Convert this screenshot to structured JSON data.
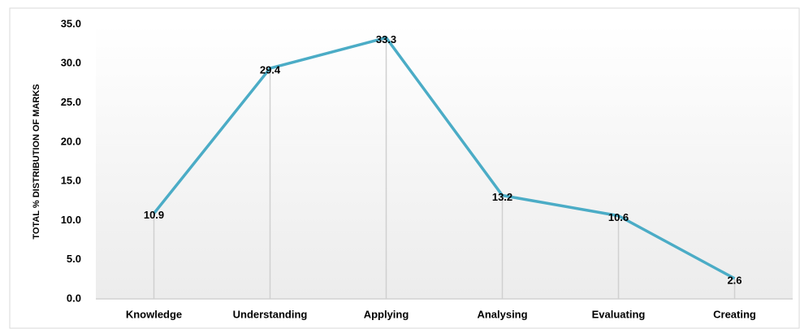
{
  "chart_data": {
    "type": "line",
    "y_label": "TOTAL % DISTRIBUTION OF MARKS",
    "categories": [
      "Knowledge",
      "Understanding",
      "Applying",
      "Analysing",
      "Evaluating",
      "Creating"
    ],
    "values": [
      10.9,
      29.4,
      33.3,
      13.2,
      10.6,
      2.6
    ],
    "color": "#4bacc6",
    "ylim": [
      0,
      35
    ],
    "yticks": [
      {
        "value": 0,
        "label": "0.0"
      },
      {
        "value": 5,
        "label": "5.0"
      },
      {
        "value": 10,
        "label": "10.0"
      },
      {
        "value": 15,
        "label": "15.0"
      },
      {
        "value": 20,
        "label": "20.0"
      },
      {
        "value": 25,
        "label": "25.0"
      },
      {
        "value": 30,
        "label": "30.0"
      },
      {
        "value": 35,
        "label": "35.0"
      }
    ],
    "drop_lines": true
  }
}
